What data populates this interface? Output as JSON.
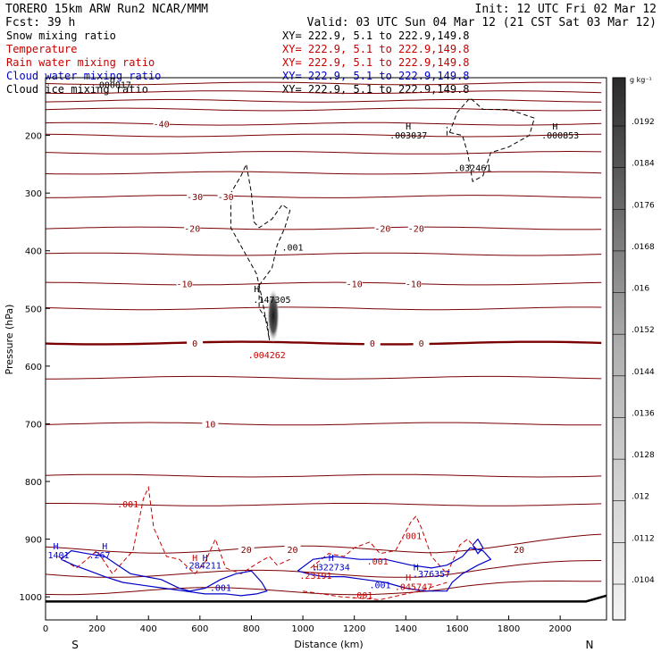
{
  "header": {
    "model_line": "TORERO  15km ARW   Run2    NCAR/MMM",
    "init_line": "Init: 12 UTC Fri 02 Mar 12",
    "fcst_line": "Fcst:   39 h",
    "valid_line": "Valid: 03 UTC Sun 04 Mar 12 (21 CST Sat 03 Mar 12)"
  },
  "legend": [
    {
      "name": "Snow mixing ratio",
      "color": "#000000",
      "xy": "XY= 222.9,  5.1 to 222.9,149.8"
    },
    {
      "name": "Temperature",
      "color": "#c80000",
      "xy": "XY= 222.9,  5.1 to 222.9,149.8"
    },
    {
      "name": "Rain water mixing ratio",
      "color": "#c80000",
      "xy": "XY= 222.9,  5.1 to 222.9,149.8"
    },
    {
      "name": "Cloud water mixing ratio",
      "color": "#0000c8",
      "xy": "XY= 222.9,  5.1 to 222.9,149.8"
    },
    {
      "name": "Cloud ice mixing ratio",
      "color": "#000000",
      "xy": "XY= 222.9,  5.1 to 222.9,149.8"
    }
  ],
  "colorbar": {
    "unit": "g kg⁻¹",
    "ticks": [
      ".0192",
      ".0184",
      ".0176",
      ".0168",
      ".016",
      ".0152",
      ".0144",
      ".0136",
      ".0128",
      ".012",
      ".0112",
      ".0104"
    ]
  },
  "chart_data": {
    "type": "contour",
    "xlabel": "Distance (km)",
    "ylabel": "Pressure (hPa)",
    "xlim": [
      0,
      2180
    ],
    "ylim": [
      1040,
      100
    ],
    "x_ticks": [
      0,
      200,
      400,
      600,
      800,
      1000,
      1200,
      1400,
      1600,
      1800,
      2000
    ],
    "y_ticks": [
      200,
      300,
      400,
      500,
      600,
      700,
      800,
      900,
      1000
    ],
    "x_end_labels": {
      "left": "S",
      "right": "N"
    },
    "temperature_contours": [
      {
        "value": -40,
        "p": 180,
        "label_at_km": 450
      },
      {
        "value": -30,
        "p": 306,
        "label_at_km": 580
      },
      {
        "value": -30,
        "p": 306,
        "label_at_km": 700
      },
      {
        "value": -20,
        "p": 361,
        "label_at_km": 570
      },
      {
        "value": -20,
        "p": 361,
        "label_at_km": 1310
      },
      {
        "value": -20,
        "p": 361,
        "label_at_km": 1440
      },
      {
        "value": -10,
        "p": 457,
        "label_at_km": 540
      },
      {
        "value": -10,
        "p": 457,
        "label_at_km": 1200
      },
      {
        "value": -10,
        "p": 457,
        "label_at_km": 1430
      },
      {
        "value": 0,
        "p": 560,
        "label_at_km": 580
      },
      {
        "value": 0,
        "p": 560,
        "label_at_km": 1270
      },
      {
        "value": 0,
        "p": 560,
        "label_at_km": 1460
      },
      {
        "value": 10,
        "p": 700,
        "label_at_km": 640
      },
      {
        "value": 20,
        "p": 918,
        "label_at_km": 780
      },
      {
        "value": 20,
        "p": 918,
        "label_at_km": 960
      },
      {
        "value": 20,
        "p": 918,
        "label_at_km": 1840
      }
    ],
    "temperature_isotherm_pressures": [
      110,
      125,
      140,
      155,
      180,
      200,
      230,
      265,
      306,
      361,
      406,
      457,
      500,
      560,
      620,
      700,
      790,
      840,
      918,
      960,
      990
    ],
    "annotations": [
      {
        "text": "H",
        "km": 260,
        "p": 108,
        "color": "#000000"
      },
      {
        "text": ".000017",
        "km": 260,
        "p": 118,
        "color": "#000000"
      },
      {
        "text": "H",
        "km": 1410,
        "p": 190,
        "color": "#000000"
      },
      {
        "text": ".003037",
        "km": 1410,
        "p": 205,
        "color": "#000000"
      },
      {
        "text": "H",
        "km": 1980,
        "p": 190,
        "color": "#000000"
      },
      {
        "text": ".000853",
        "km": 2000,
        "p": 205,
        "color": "#000000"
      },
      {
        "text": ".032461",
        "km": 1660,
        "p": 262,
        "color": "#000000"
      },
      {
        "text": ".001",
        "km": 960,
        "p": 400,
        "color": "#000000"
      },
      {
        "text": "H",
        "km": 820,
        "p": 472,
        "color": "#000000"
      },
      {
        "text": ".147305",
        "km": 880,
        "p": 490,
        "color": "#000000"
      },
      {
        "text": ".004262",
        "km": 860,
        "p": 586,
        "color": "#c80000"
      },
      {
        "text": ".001",
        "km": 320,
        "p": 845,
        "color": "#c80000"
      },
      {
        "text": ".001",
        "km": 1420,
        "p": 900,
        "color": "#c80000"
      },
      {
        "text": ".001",
        "km": 1290,
        "p": 944,
        "color": "#c80000"
      },
      {
        "text": ".001",
        "km": 1230,
        "p": 1003,
        "color": "#c80000"
      },
      {
        "text": "H",
        "km": 40,
        "p": 918,
        "color": "#0000c8"
      },
      {
        "text": ".1401",
        "km": 40,
        "p": 933,
        "color": "#0000c8"
      },
      {
        "text": "H",
        "km": 230,
        "p": 918,
        "color": "#0000c8"
      },
      {
        "text": ".267",
        "km": 210,
        "p": 933,
        "color": "#0000c8"
      },
      {
        "text": "H",
        "km": 580,
        "p": 938,
        "color": "#c80000"
      },
      {
        "text": "H",
        "km": 620,
        "p": 938,
        "color": "#0000c8"
      },
      {
        "text": ".284211",
        "km": 610,
        "p": 951,
        "color": "#0000c8"
      },
      {
        "text": ".001",
        "km": 680,
        "p": 990,
        "color": "#0000c8"
      },
      {
        "text": "H",
        "km": 1110,
        "p": 938,
        "color": "#0000c8"
      },
      {
        "text": ".322734",
        "km": 1110,
        "p": 954,
        "color": "#0000c8"
      },
      {
        "text": ".001",
        "km": 1300,
        "p": 985,
        "color": "#0000c8"
      },
      {
        "text": "H",
        "km": 1050,
        "p": 954,
        "color": "#c80000"
      },
      {
        "text": ".23191",
        "km": 1050,
        "p": 969,
        "color": "#c80000"
      },
      {
        "text": "H",
        "km": 1440,
        "p": 954,
        "color": "#0000c8"
      },
      {
        "text": ".376357",
        "km": 1500,
        "p": 966,
        "color": "#0000c8"
      },
      {
        "text": "H",
        "km": 1410,
        "p": 972,
        "color": "#c80000"
      },
      {
        "text": ".045747",
        "km": 1430,
        "p": 988,
        "color": "#c80000"
      }
    ],
    "snow_max": {
      "km": 885,
      "p_top": 465,
      "p_bottom": 560
    }
  }
}
